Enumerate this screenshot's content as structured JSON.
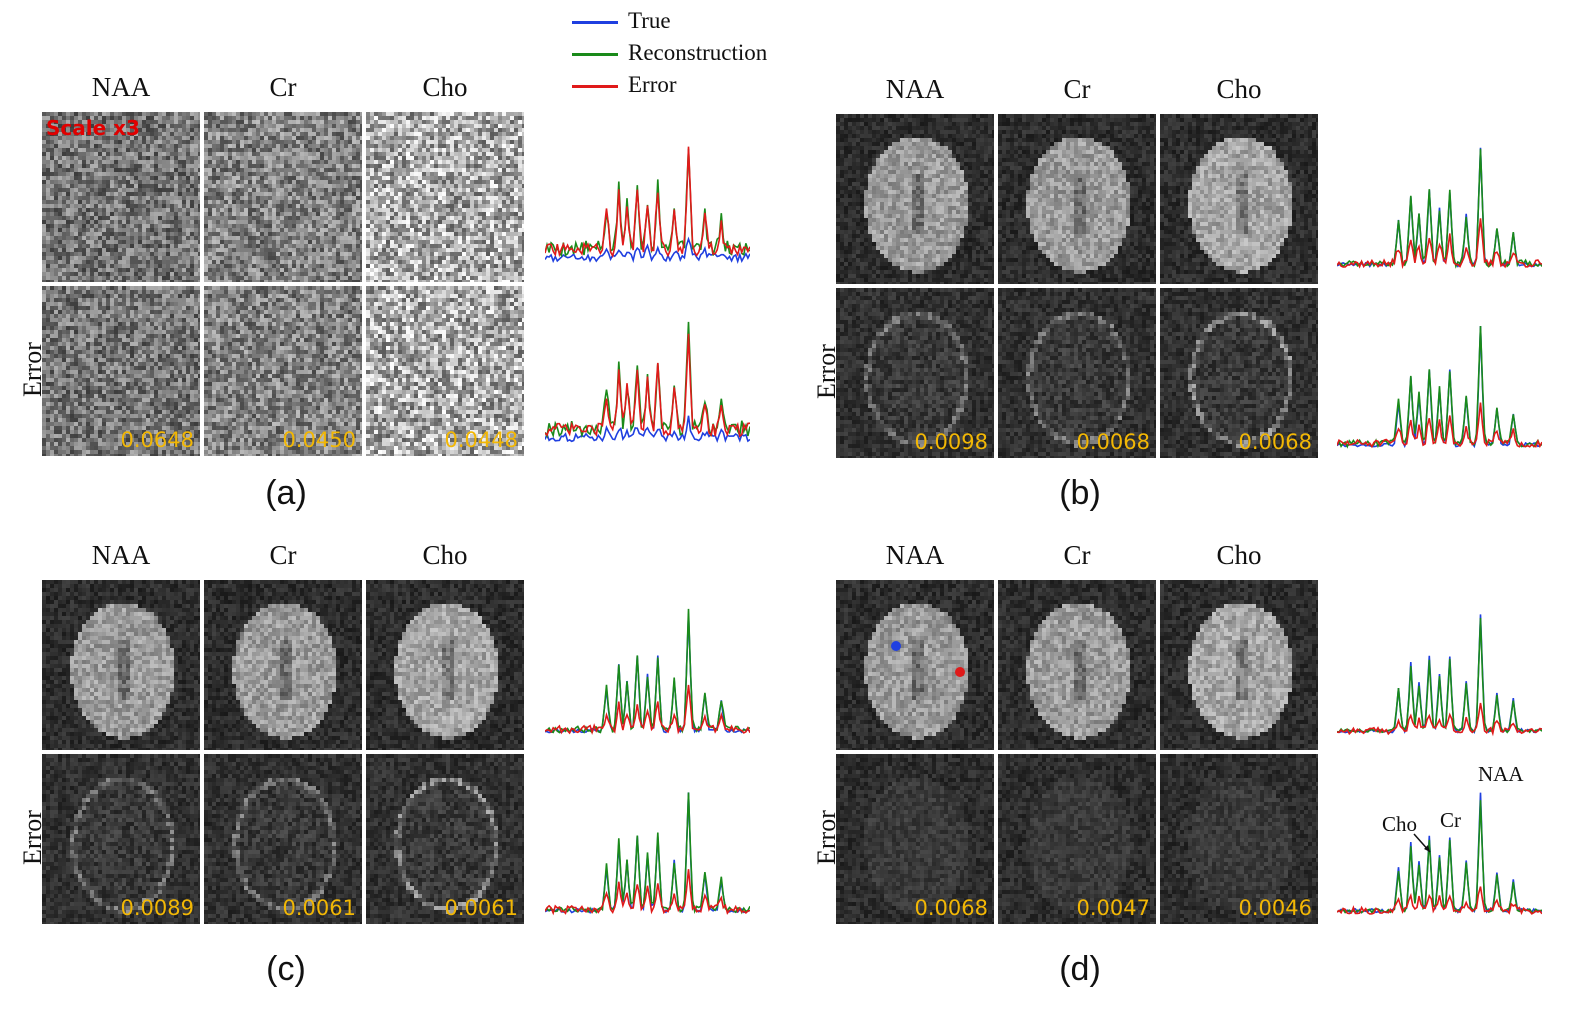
{
  "legend": {
    "items": [
      {
        "label": "True",
        "color": "#1f3fe0"
      },
      {
        "label": "Reconstruction",
        "color": "#1a8a1a"
      },
      {
        "label": "Error",
        "color": "#e01a1a"
      }
    ]
  },
  "common": {
    "columns": [
      "NAA",
      "Cr",
      "Cho"
    ],
    "error_row_label": "Error"
  },
  "panels": [
    {
      "caption": "(a)",
      "scale_tag": "Scale x3",
      "errors": [
        "0.0648",
        "0.0450",
        "0.0448"
      ]
    },
    {
      "caption": "(b)",
      "errors": [
        "0.0098",
        "0.0068",
        "0.0068"
      ]
    },
    {
      "caption": "(c)",
      "errors": [
        "0.0089",
        "0.0061",
        "0.0061"
      ]
    },
    {
      "caption": "(d)",
      "errors": [
        "0.0068",
        "0.0047",
        "0.0046"
      ],
      "peak_labels": {
        "naa": "NAA",
        "cr": "Cr",
        "cho": "Cho"
      }
    }
  ]
}
